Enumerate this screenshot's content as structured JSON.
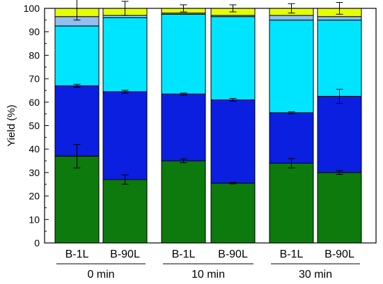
{
  "chart_data": {
    "type": "bar",
    "stacked": true,
    "title": "",
    "xlabel": "",
    "ylabel": "Yield (%)",
    "ylim": [
      0,
      100
    ],
    "yticks": [
      0,
      10,
      20,
      30,
      40,
      50,
      60,
      70,
      80,
      90,
      100
    ],
    "grid": false,
    "categories": [
      "B-1L",
      "B-90L",
      "B-1L",
      "B-90L",
      "B-1L",
      "B-90L"
    ],
    "groups": [
      {
        "label": "0 min",
        "members": [
          0,
          1
        ]
      },
      {
        "label": "10 min",
        "members": [
          2,
          3
        ]
      },
      {
        "label": "30 min",
        "members": [
          4,
          5
        ]
      }
    ],
    "series": [
      {
        "color": "#0d7a0d",
        "values": [
          37.0,
          27.0,
          35.0,
          25.5,
          34.0,
          30.0
        ],
        "errors": [
          5.0,
          2.0,
          0.8,
          0.3,
          2.0,
          0.8
        ]
      },
      {
        "color": "#0a1fe0",
        "values": [
          30.0,
          37.5,
          28.5,
          35.5,
          21.5,
          32.5
        ],
        "errors": [
          0.6,
          0.6,
          0.4,
          0.6,
          0.4,
          3.0
        ]
      },
      {
        "color": "#00e5ff",
        "values": [
          25.5,
          31.5,
          34.0,
          35.5,
          39.5,
          32.5
        ],
        "errors": [
          0,
          0,
          0,
          0,
          0,
          0
        ]
      },
      {
        "color": "#94bdf0",
        "values": [
          4.0,
          1.0,
          0.5,
          0.5,
          2.0,
          1.5
        ],
        "errors": [
          0,
          0,
          0,
          0,
          0,
          0
        ]
      },
      {
        "color": "#e6ff00",
        "values": [
          3.5,
          3.0,
          2.0,
          3.0,
          3.0,
          3.5
        ],
        "errors": [
          5.0,
          3.0,
          1.5,
          1.5,
          2.0,
          2.5
        ]
      }
    ]
  }
}
